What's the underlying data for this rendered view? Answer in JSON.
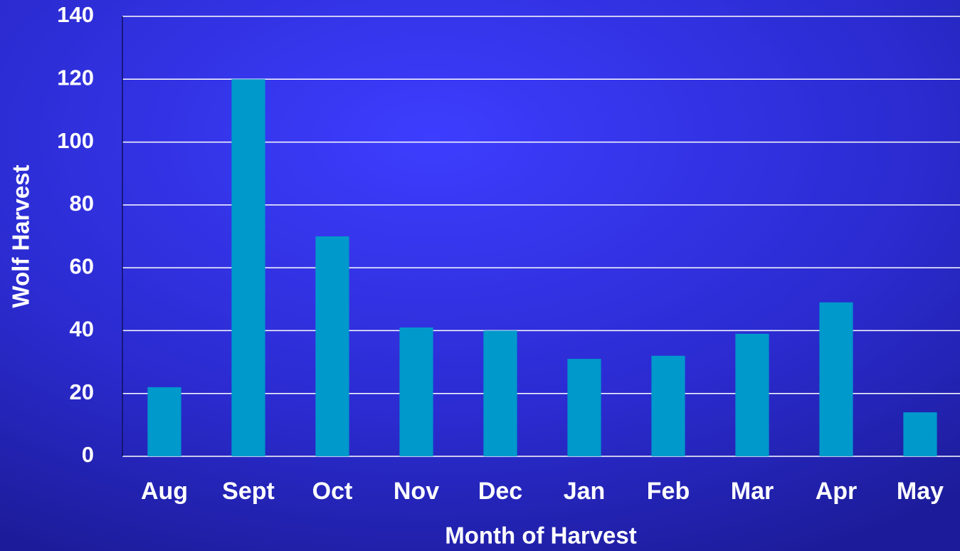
{
  "chart_data": {
    "type": "bar",
    "categories": [
      "Aug",
      "Sept",
      "Oct",
      "Nov",
      "Dec",
      "Jan",
      "Feb",
      "Mar",
      "Apr",
      "May"
    ],
    "values": [
      22,
      120,
      70,
      41,
      40,
      31,
      32,
      39,
      49,
      14
    ],
    "color": "#0099cc",
    "x_label": "Month of Harvest",
    "y_label": "Wolf Harvest",
    "ylim": [
      0,
      140
    ],
    "yticks": [
      0,
      20,
      40,
      60,
      80,
      100,
      120,
      140
    ],
    "grid": true
  }
}
